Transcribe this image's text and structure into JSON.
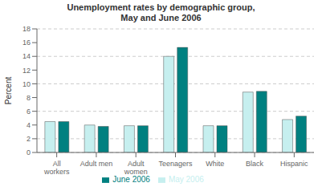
{
  "chart_data": {
    "type": "bar",
    "title": "Unemployment rates by demographic group,\nMay and June 2006",
    "categories": [
      "All\nworkers",
      "Adult men",
      "Adult\nwomen",
      "Teenagers",
      "White",
      "Black",
      "Hispanic"
    ],
    "series": [
      {
        "name": "May 2006",
        "color": "#c6efef",
        "values": [
          4.5,
          4.0,
          3.9,
          14.0,
          3.9,
          8.8,
          4.8
        ]
      },
      {
        "name": "June 2006",
        "color": "#008080",
        "values": [
          4.5,
          3.8,
          3.9,
          15.3,
          3.9,
          8.9,
          5.3
        ]
      }
    ],
    "ylabel": "Percent",
    "ylim": [
      0,
      18
    ],
    "yticks": [
      0,
      2,
      4,
      6,
      8,
      10,
      12,
      14,
      16,
      18
    ],
    "grid": true,
    "legend": "bottom"
  }
}
